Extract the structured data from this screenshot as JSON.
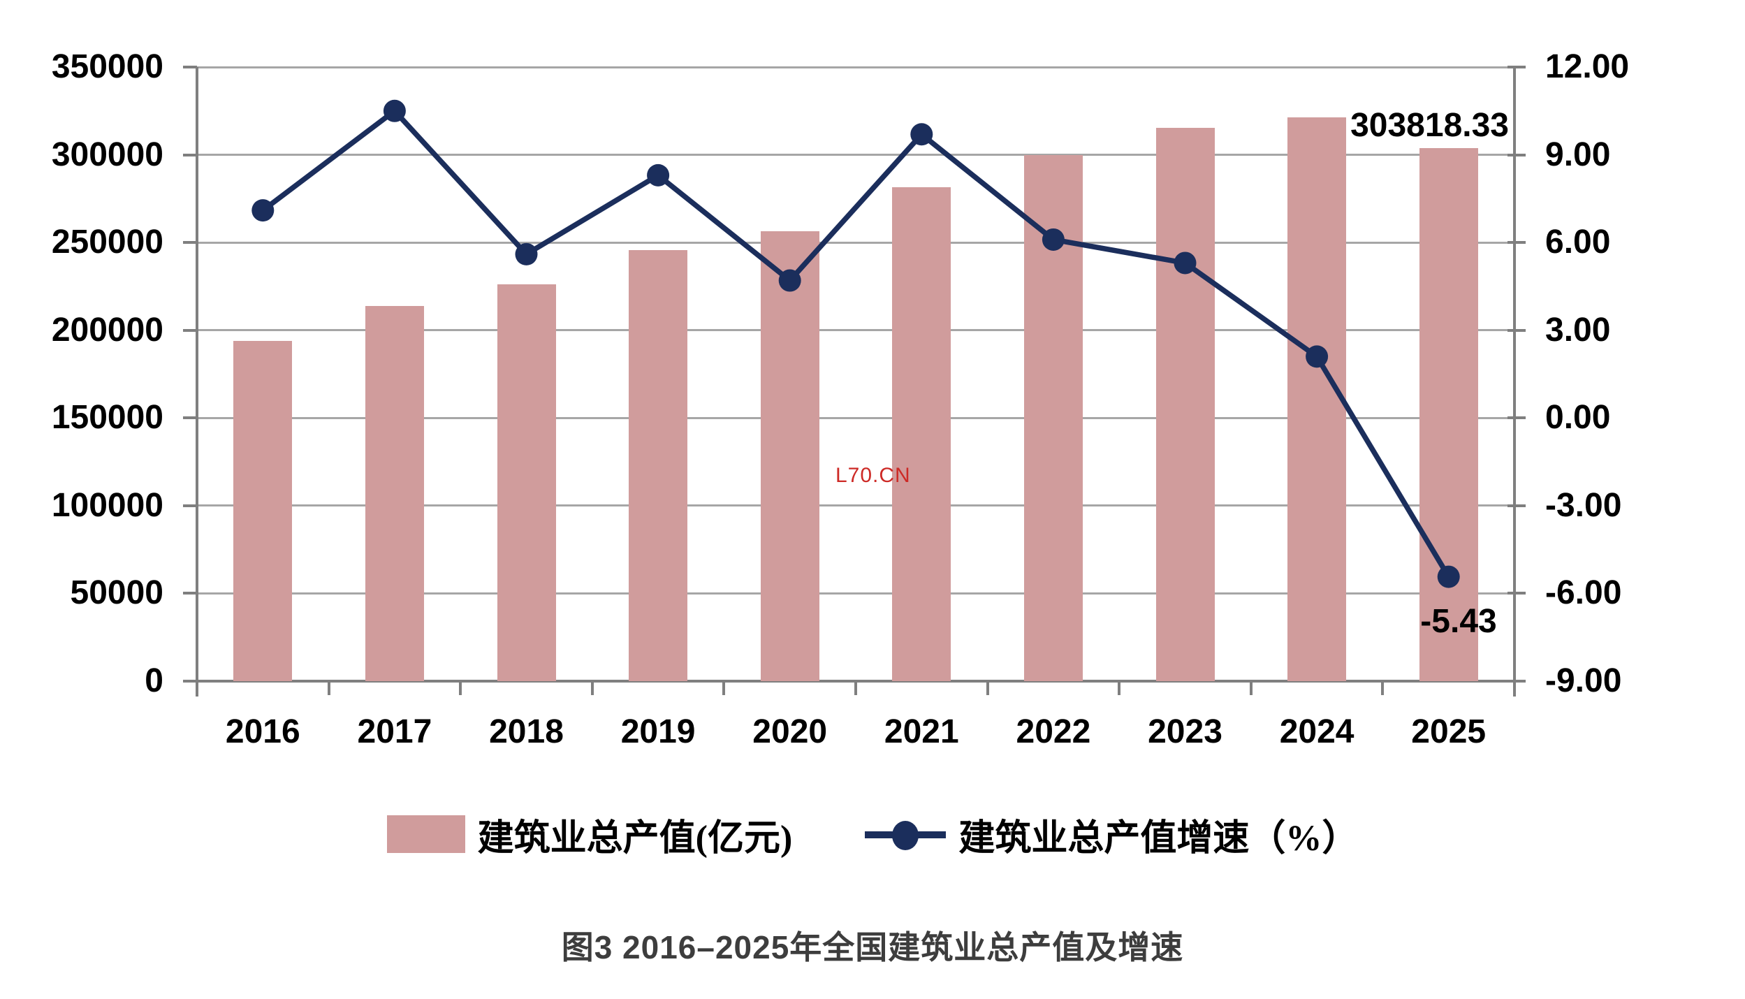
{
  "page": {
    "background": "#ffffff"
  },
  "chart_data": {
    "type": "combo (bar + line, dual y-axes)",
    "title": "图3  2016–2025年全国建筑业总产值及增速",
    "categories": [
      "2016",
      "2017",
      "2018",
      "2019",
      "2020",
      "2021",
      "2022",
      "2023",
      "2024",
      "2025"
    ],
    "series": [
      {
        "name": "建筑业总产值(亿元)",
        "type": "bar",
        "axis": "left",
        "color": "#d09c9c",
        "values": [
          194000,
          214000,
          226000,
          245500,
          256500,
          281500,
          300000,
          315500,
          321300,
          303818.33
        ]
      },
      {
        "name": "建筑业总产值增速（%）",
        "type": "line",
        "axis": "right",
        "color": "#1b2e5c",
        "values": [
          7.1,
          10.5,
          5.6,
          8.3,
          4.7,
          9.7,
          6.1,
          5.3,
          2.1,
          -5.43
        ]
      }
    ],
    "left_axis": {
      "min": 0,
      "max": 350000,
      "step": 50000,
      "tick_labels": [
        "350000",
        "300000",
        "250000",
        "200000",
        "150000",
        "100000",
        "50000",
        "0"
      ]
    },
    "right_axis": {
      "min": -9,
      "max": 12,
      "step": 3,
      "tick_labels": [
        "12.00",
        "9.00",
        "6.00",
        "3.00",
        "0.00",
        "-3.00",
        "-6.00",
        "-9.00"
      ]
    },
    "grid": true,
    "gridline_color": "#a6a6a6",
    "axis_color": "#7f7f7f",
    "legend_position": "bottom",
    "data_labels": [
      {
        "series": "bar",
        "category": "2025",
        "text": "303818.33"
      },
      {
        "series": "line",
        "category": "2025",
        "text": "-5.43"
      }
    ]
  },
  "legend": {
    "items": [
      {
        "label": "建筑业总产值(亿元)",
        "marker": "bar-swatch",
        "color": "#d09c9c"
      },
      {
        "label": "建筑业总产值增速（%）",
        "marker": "line-dot",
        "color": "#1b2e5c"
      }
    ]
  },
  "watermark": {
    "text": "L70.CN",
    "color": "#cd2a26"
  },
  "caption": {
    "text": "图3  2016–2025年全国建筑业总产值及增速"
  }
}
